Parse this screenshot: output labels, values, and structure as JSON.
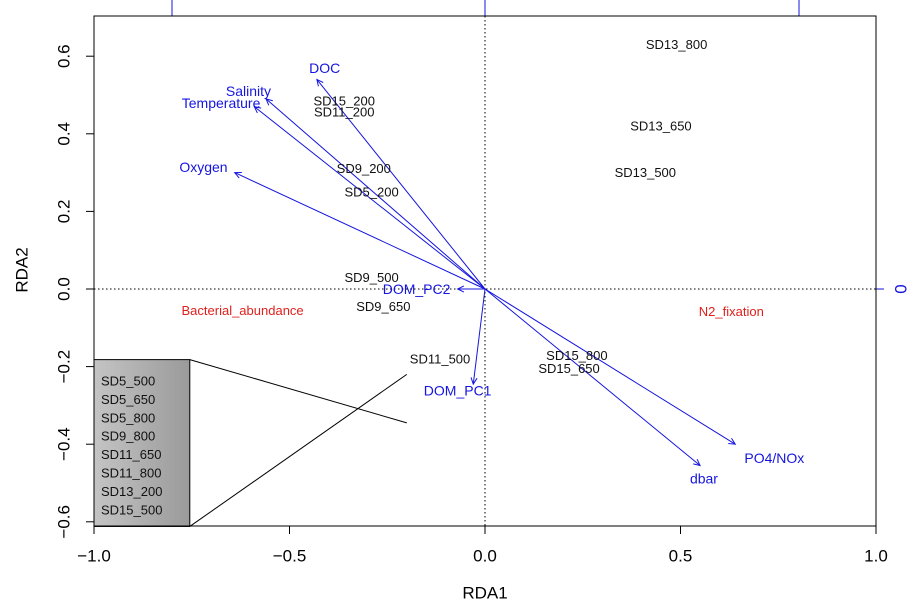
{
  "chart_data": {
    "type": "scatter",
    "title": "",
    "xlabel": "RDA1",
    "ylabel": "RDA2",
    "xlim": [
      -1.0,
      1.0
    ],
    "ylim": [
      -0.62,
      0.7
    ],
    "x_ticks": [
      "−1.0",
      "−0.5",
      "0.0",
      "0.5",
      "1.0"
    ],
    "x_tick_values": [
      -1.0,
      -0.5,
      0.0,
      0.5,
      1.0
    ],
    "y_ticks": [
      "−0.6",
      "−0.4",
      "−0.2",
      "0.0",
      "0.2",
      "0.4",
      "0.6"
    ],
    "y_tick_values": [
      -0.6,
      -0.4,
      -0.2,
      0.0,
      0.2,
      0.4,
      0.6
    ],
    "right_axis_label": "0",
    "colors": {
      "arrows": "#1515e0",
      "samples": "#111111",
      "factors": "#e0201c",
      "box": "#b4b4b4"
    },
    "samples": [
      {
        "label": "SD13_800",
        "x": 0.49,
        "y": 0.63
      },
      {
        "label": "SD13_650",
        "x": 0.45,
        "y": 0.42
      },
      {
        "label": "SD13_500",
        "x": 0.41,
        "y": 0.3
      },
      {
        "label": "SD15_200",
        "x": -0.36,
        "y": 0.485
      },
      {
        "label": "SD11_200",
        "x": -0.36,
        "y": 0.456
      },
      {
        "label": "SD9_200",
        "x": -0.31,
        "y": 0.31
      },
      {
        "label": "SD5_200",
        "x": -0.29,
        "y": 0.25
      },
      {
        "label": "SD9_500",
        "x": -0.29,
        "y": 0.03
      },
      {
        "label": "SD9_650",
        "x": -0.26,
        "y": -0.045
      },
      {
        "label": "SD11_500",
        "x": -0.115,
        "y": -0.18
      },
      {
        "label": "SD15_800",
        "x": 0.235,
        "y": -0.172
      },
      {
        "label": "SD15_650",
        "x": 0.215,
        "y": -0.205
      }
    ],
    "vectors": [
      {
        "label": "DOC",
        "x": -0.43,
        "y": 0.54,
        "lx": -0.41,
        "ly": 0.57
      },
      {
        "label": "Salinity",
        "x": -0.56,
        "y": 0.49,
        "lx": -0.605,
        "ly": 0.51
      },
      {
        "label": "Temperature",
        "x": -0.59,
        "y": 0.47,
        "lx": -0.675,
        "ly": 0.48
      },
      {
        "label": "Oxygen",
        "x": -0.64,
        "y": 0.3,
        "lx": -0.72,
        "ly": 0.315
      },
      {
        "label": "DOM_PC2",
        "x": -0.07,
        "y": 0.0,
        "lx": -0.175,
        "ly": 0.0
      },
      {
        "label": "DOM_PC1",
        "x": -0.03,
        "y": -0.245,
        "lx": -0.07,
        "ly": -0.262
      },
      {
        "label": "PO4/NOx",
        "x": 0.64,
        "y": -0.4,
        "lx": 0.74,
        "ly": -0.435
      },
      {
        "label": "dbar",
        "x": 0.55,
        "y": -0.455,
        "lx": 0.56,
        "ly": -0.488
      }
    ],
    "factors": [
      {
        "label": "Bacterial_abundance",
        "x": -0.62,
        "y": -0.055
      },
      {
        "label": "N2_fixation",
        "x": 0.63,
        "y": -0.058
      }
    ],
    "inset_box": {
      "x0": -0.2,
      "x1": 0.2,
      "y0": -0.345,
      "y1": -0.22
    },
    "legend_box": {
      "x0": -1.0,
      "x1": -0.755,
      "y0": -0.612,
      "y1": -0.182,
      "labels": [
        "SD5_500",
        "SD5_650",
        "SD5_800",
        "SD9_800",
        "SD11_650",
        "SD11_800",
        "SD13_200",
        "SD15_500"
      ]
    }
  }
}
